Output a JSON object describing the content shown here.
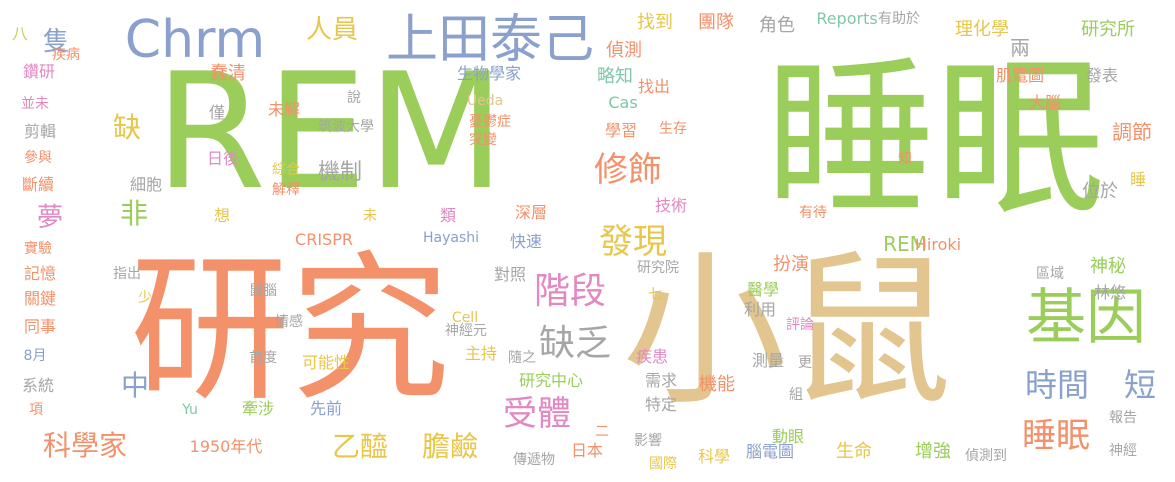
{
  "palette": {
    "green": "#9acd5a",
    "orange": "#f2916a",
    "tan": "#e2c58f",
    "blue": "#8aa0cd",
    "pink": "#e288c2",
    "gold": "#e8c64a",
    "gray": "#a6a6a6",
    "lime": "#bcd85c",
    "teal": "#7fc7a6"
  },
  "words": [
    "REM",
    "睡眠",
    "研究",
    "小鼠",
    "Chrm",
    "上田泰己",
    "基因",
    "階段",
    "缺乏",
    "受體",
    "發現",
    "修飾",
    "睡眠",
    "時間",
    "短",
    "乙醯",
    "膽鹼",
    "科學家",
    "缺",
    "非",
    "中",
    "人員",
    "隻",
    "八",
    "夢",
    "機制",
    "生物學家",
    "略知",
    "偵測",
    "找到",
    "團隊",
    "角色",
    "Reports",
    "有助於",
    "研究所",
    "理化學",
    "兩",
    "肌電圖",
    "大腦",
    "發表",
    "調節",
    "睡",
    "位於",
    "REM",
    "有待",
    "技術",
    "深層",
    "類",
    "未",
    "想",
    "解釋",
    "綜合",
    "細胞",
    "日後",
    "斷續",
    "參與",
    "剪輯",
    "並未",
    "鑽研",
    "疾病",
    "蠢清",
    "僅",
    "說",
    "Ueda",
    "憂鬱症",
    "突變",
    "Cas",
    "學習",
    "生存",
    "找出",
    "筑波大學",
    "未解",
    "實驗",
    "記憶",
    "關鍵",
    "同事",
    "8月",
    "系統",
    "項",
    "指出",
    "少",
    "鼠腦",
    "情感",
    "首度",
    "可能性",
    "神經元",
    "主持",
    "隨之",
    "研究中心",
    "CRISPR",
    "Hayashi",
    "快速",
    "對照",
    "研究院",
    "七",
    "扮演",
    "醫學",
    "利用",
    "評論",
    "Hiroki",
    "區域",
    "神秘",
    "林悠",
    "疾患",
    "測量",
    "更",
    "組",
    "需求",
    "特定",
    "機能",
    "Cell",
    "Yu",
    "牽涉",
    "先前",
    "1950年代",
    "傳遞物",
    "日本",
    "二",
    "影響",
    "國際",
    "科學",
    "腦電圖",
    "動眼",
    "生命",
    "增強",
    "偵測到",
    "神經",
    "報告",
    "知"
  ]
}
